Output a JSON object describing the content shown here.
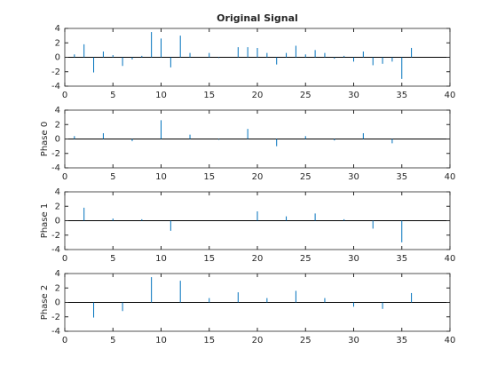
{
  "chart_data": [
    {
      "type": "stem",
      "title": "Original Signal",
      "color": "#0072bd",
      "x": [
        1,
        2,
        3,
        4,
        5,
        6,
        7,
        8,
        9,
        10,
        11,
        12,
        13,
        14,
        15,
        16,
        17,
        18,
        19,
        20,
        21,
        22,
        23,
        24,
        25,
        26,
        27,
        28,
        29,
        30,
        31,
        32,
        33,
        34,
        35,
        36
      ],
      "values": [
        0.4,
        1.8,
        -2.1,
        0.8,
        0.3,
        -1.2,
        -0.3,
        0.2,
        3.5,
        2.6,
        -1.4,
        3.0,
        0.6,
        0.0,
        0.6,
        -0.1,
        0.0,
        1.4,
        1.4,
        1.3,
        0.6,
        -1.0,
        0.6,
        1.6,
        0.4,
        1.0,
        0.6,
        -0.2,
        0.2,
        -0.6,
        0.8,
        -1.1,
        -0.9,
        -0.6,
        -3.0,
        1.3
      ],
      "xlim": [
        0,
        40
      ],
      "ylim": [
        -4,
        4
      ],
      "xticks": [
        0,
        5,
        10,
        15,
        20,
        25,
        30,
        35,
        40
      ],
      "yticks": [
        -4,
        -2,
        0,
        2,
        4
      ]
    },
    {
      "type": "stem",
      "ylabel": "Phase 0",
      "color": "#0072bd",
      "x": [
        1,
        4,
        7,
        10,
        13,
        16,
        19,
        22,
        25,
        28,
        31,
        34
      ],
      "values": [
        0.4,
        0.8,
        -0.3,
        2.6,
        0.6,
        -0.1,
        1.4,
        -1.0,
        0.4,
        -0.2,
        0.8,
        -0.6
      ],
      "xlim": [
        0,
        40
      ],
      "ylim": [
        -4,
        4
      ],
      "xticks": [
        0,
        5,
        10,
        15,
        20,
        25,
        30,
        35,
        40
      ],
      "yticks": [
        -4,
        -2,
        0,
        2,
        4
      ]
    },
    {
      "type": "stem",
      "ylabel": "Phase 1",
      "color": "#0072bd",
      "x": [
        2,
        5,
        8,
        11,
        14,
        17,
        20,
        23,
        26,
        29,
        32,
        35
      ],
      "values": [
        1.8,
        0.3,
        0.2,
        -1.4,
        0.0,
        0.0,
        1.3,
        0.6,
        1.0,
        0.2,
        -1.1,
        -3.0
      ],
      "xlim": [
        0,
        40
      ],
      "ylim": [
        -4,
        4
      ],
      "xticks": [
        0,
        5,
        10,
        15,
        20,
        25,
        30,
        35,
        40
      ],
      "yticks": [
        -4,
        -2,
        0,
        2,
        4
      ]
    },
    {
      "type": "stem",
      "ylabel": "Phase 2",
      "color": "#0072bd",
      "x": [
        3,
        6,
        9,
        12,
        15,
        18,
        21,
        24,
        27,
        30,
        33,
        36
      ],
      "values": [
        -2.1,
        -1.2,
        3.5,
        3.0,
        0.6,
        1.4,
        0.6,
        1.6,
        0.6,
        -0.6,
        -0.9,
        1.3
      ],
      "xlim": [
        0,
        40
      ],
      "ylim": [
        -4,
        4
      ],
      "xticks": [
        0,
        5,
        10,
        15,
        20,
        25,
        30,
        35,
        40
      ],
      "yticks": [
        -4,
        -2,
        0,
        2,
        4
      ]
    }
  ]
}
